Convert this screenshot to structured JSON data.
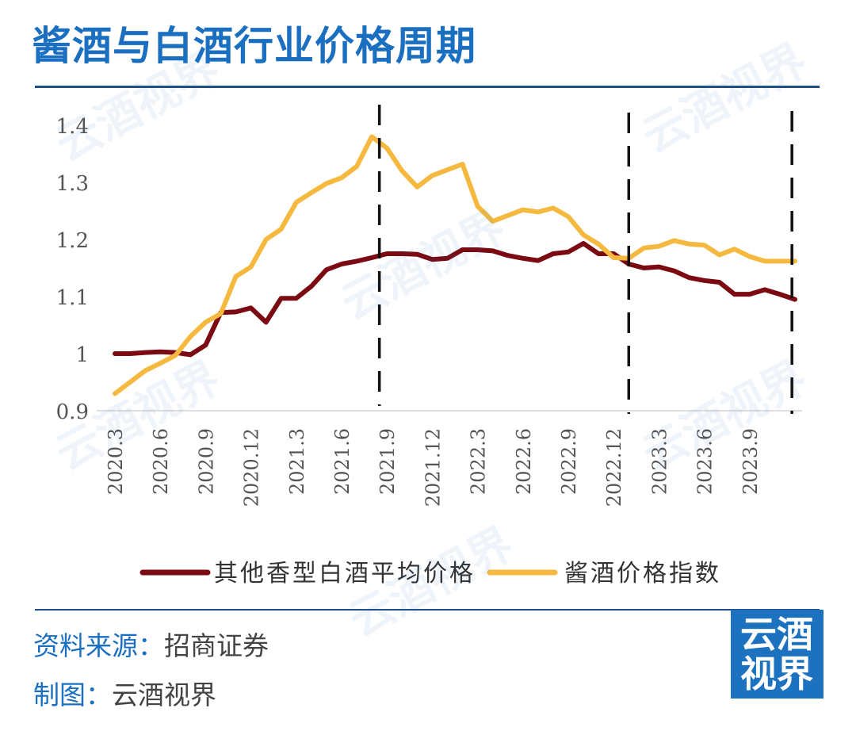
{
  "title": "酱酒与白酒行业价格周期",
  "source_label": "资料来源：",
  "source_value": "招商证券",
  "made_by_label": "制图：",
  "made_by_value": "云酒视界",
  "logo_text": [
    "云酒",
    "视界"
  ],
  "watermark_text": "云酒视界",
  "colors": {
    "brand": "#1a6fc0",
    "series_other": "#7b0a12",
    "series_jiang": "#f5b940",
    "rule": "#1f4f8a"
  },
  "chart_data": {
    "type": "line",
    "title": "",
    "xlabel": "",
    "ylabel": "",
    "ylim": [
      0.9,
      1.4
    ],
    "yticks": [
      0.9,
      1,
      1.1,
      1.2,
      1.3,
      1.4
    ],
    "ytick_labels": [
      "0.9",
      "1",
      "1.1",
      "1.2",
      "1.3",
      "1.4"
    ],
    "x_tick_labels": [
      "2020.3",
      "2020.6",
      "2020.9",
      "2020.12",
      "2021.3",
      "2021.6",
      "2021.9",
      "2021.12",
      "2022.3",
      "2022.6",
      "2022.9",
      "2022.12",
      "2023.3",
      "2023.6",
      "2023.9"
    ],
    "x_tick_index": [
      0,
      3,
      6,
      9,
      12,
      15,
      18,
      21,
      24,
      27,
      30,
      33,
      36,
      39,
      42
    ],
    "n_points": 46,
    "vlines_index": [
      17.5,
      34.0,
      44.8
    ],
    "series": [
      {
        "name": "其他香型白酒平均价格",
        "color": "#7b0a12",
        "values": [
          1.0,
          1.0,
          1.002,
          1.003,
          1.002,
          0.998,
          1.015,
          1.072,
          1.073,
          1.08,
          1.055,
          1.097,
          1.097,
          1.118,
          1.147,
          1.157,
          1.162,
          1.168,
          1.175,
          1.175,
          1.174,
          1.165,
          1.167,
          1.182,
          1.182,
          1.18,
          1.172,
          1.167,
          1.163,
          1.175,
          1.178,
          1.193,
          1.175,
          1.175,
          1.157,
          1.15,
          1.152,
          1.145,
          1.133,
          1.128,
          1.125,
          1.104,
          1.104,
          1.112,
          1.104,
          1.095
        ]
      },
      {
        "name": "酱酒价格指数",
        "color": "#f5b940",
        "values": [
          0.93,
          0.95,
          0.97,
          0.983,
          0.997,
          1.03,
          1.055,
          1.07,
          1.135,
          1.152,
          1.2,
          1.218,
          1.265,
          1.282,
          1.298,
          1.308,
          1.328,
          1.38,
          1.36,
          1.32,
          1.292,
          1.312,
          1.322,
          1.332,
          1.258,
          1.232,
          1.242,
          1.252,
          1.248,
          1.255,
          1.24,
          1.208,
          1.192,
          1.168,
          1.167,
          1.185,
          1.188,
          1.198,
          1.192,
          1.19,
          1.173,
          1.183,
          1.17,
          1.162,
          1.162,
          1.162
        ]
      }
    ],
    "legend": [
      {
        "label": "其他香型白酒平均价格",
        "color": "#7b0a12"
      },
      {
        "label": "酱酒价格指数",
        "color": "#f5b940"
      }
    ]
  }
}
